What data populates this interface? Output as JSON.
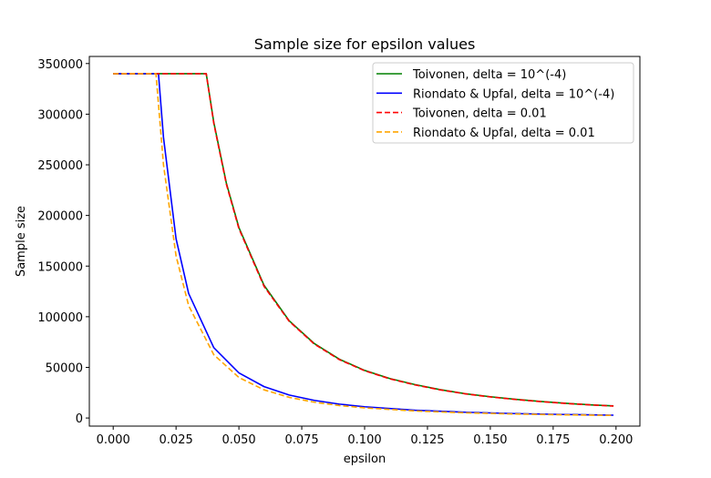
{
  "chart_data": {
    "type": "line",
    "title": "Sample size for epsilon values",
    "xlabel": "epsilon",
    "ylabel": "Sample size",
    "xlim": [
      -0.0095,
      0.2095
    ],
    "ylim": [
      -8000,
      357000
    ],
    "xticks": [
      0.0,
      0.025,
      0.05,
      0.075,
      0.1,
      0.125,
      0.15,
      0.175,
      0.2
    ],
    "xtick_labels": [
      "0.000",
      "0.025",
      "0.050",
      "0.075",
      "0.100",
      "0.125",
      "0.150",
      "0.175",
      "0.200"
    ],
    "yticks": [
      0,
      50000,
      100000,
      150000,
      200000,
      250000,
      300000,
      350000
    ],
    "ytick_labels": [
      "0",
      "50000",
      "100000",
      "150000",
      "200000",
      "250000",
      "300000",
      "350000"
    ],
    "grid": false,
    "legend_position": "upper right",
    "series": [
      {
        "name": "Toivonen, delta = 10^(-4)",
        "color": "#008000",
        "style": "solid",
        "x": [
          0.0,
          0.005,
          0.01,
          0.015,
          0.02,
          0.025,
          0.03,
          0.035,
          0.037,
          0.04,
          0.045,
          0.05,
          0.06,
          0.07,
          0.08,
          0.09,
          0.1,
          0.11,
          0.12,
          0.13,
          0.14,
          0.15,
          0.16,
          0.17,
          0.18,
          0.19,
          0.199
        ],
        "y": [
          340000,
          340000,
          340000,
          340000,
          340000,
          340000,
          340000,
          340000,
          340000,
          292000,
          232000,
          188000,
          131000,
          96000,
          73500,
          58000,
          47000,
          39000,
          33000,
          28000,
          24000,
          21000,
          18500,
          16300,
          14500,
          13000,
          11900
        ]
      },
      {
        "name": "Riondato & Upfal, delta = 10^(-4)",
        "color": "#0000ff",
        "style": "solid",
        "x": [
          0.0,
          0.005,
          0.01,
          0.015,
          0.018,
          0.02,
          0.025,
          0.03,
          0.04,
          0.05,
          0.06,
          0.07,
          0.08,
          0.09,
          0.1,
          0.12,
          0.14,
          0.16,
          0.18,
          0.199
        ],
        "y": [
          340000,
          340000,
          340000,
          340000,
          340000,
          277000,
          177000,
          123000,
          69500,
          44500,
          31000,
          22700,
          17400,
          13700,
          11100,
          7700,
          5700,
          4350,
          3450,
          2800
        ]
      },
      {
        "name": "Toivonen, delta = 0.01",
        "color": "#ff0000",
        "style": "dashed",
        "x": [
          0.0,
          0.005,
          0.01,
          0.015,
          0.02,
          0.025,
          0.03,
          0.035,
          0.037,
          0.04,
          0.045,
          0.05,
          0.06,
          0.07,
          0.08,
          0.09,
          0.1,
          0.11,
          0.12,
          0.13,
          0.14,
          0.15,
          0.16,
          0.17,
          0.18,
          0.19,
          0.199
        ],
        "y": [
          340000,
          340000,
          340000,
          340000,
          340000,
          340000,
          340000,
          340000,
          340000,
          291000,
          231000,
          187000,
          130000,
          95500,
          73000,
          57600,
          46700,
          38700,
          32700,
          27800,
          23900,
          20800,
          18300,
          16200,
          14400,
          12900,
          11800
        ]
      },
      {
        "name": "Riondato & Upfal, delta = 0.01",
        "color": "#ffa500",
        "style": "dashed",
        "x": [
          0.0,
          0.005,
          0.01,
          0.015,
          0.017,
          0.02,
          0.025,
          0.03,
          0.04,
          0.05,
          0.06,
          0.07,
          0.08,
          0.09,
          0.1,
          0.12,
          0.14,
          0.16,
          0.18,
          0.199
        ],
        "y": [
          340000,
          340000,
          340000,
          340000,
          340000,
          250000,
          160000,
          111000,
          62500,
          40000,
          27800,
          20400,
          15600,
          12300,
          10000,
          6950,
          5100,
          3900,
          3100,
          2550
        ]
      }
    ]
  }
}
